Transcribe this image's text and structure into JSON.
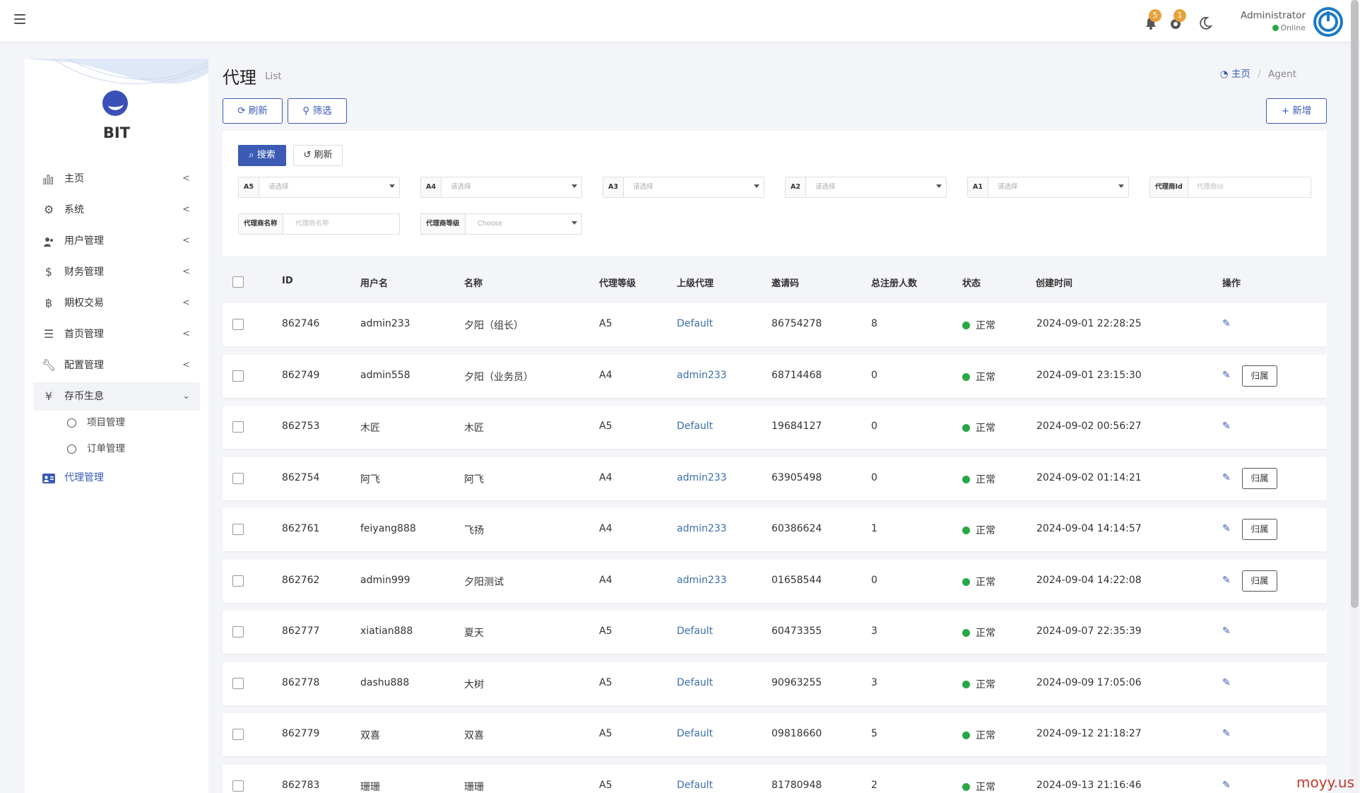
{
  "topbar": {
    "notif_count": "5",
    "msg_count": "1",
    "user_name": "Administrator",
    "user_status": "Online"
  },
  "sidebar": {
    "brand": "BIT",
    "items": [
      {
        "label": "主页",
        "icon": "bar-chart-icon"
      },
      {
        "label": "系统",
        "icon": "gear-icon"
      },
      {
        "label": "用户管理",
        "icon": "users-icon"
      },
      {
        "label": "财务管理",
        "icon": "dollar-icon"
      },
      {
        "label": "期权交易",
        "icon": "bitcoin-icon"
      },
      {
        "label": "首页管理",
        "icon": "list-icon"
      },
      {
        "label": "配置管理",
        "icon": "wrench-icon"
      },
      {
        "label": "存币生息",
        "icon": "yen-icon"
      }
    ],
    "sub_items": [
      "项目管理",
      "订单管理"
    ],
    "active_item": {
      "label": "代理管理",
      "icon": "id-card-icon"
    }
  },
  "page": {
    "title": "代理",
    "subtitle": "List",
    "breadcrumb_home": "主页",
    "breadcrumb_sep": "/",
    "breadcrumb_current": "Agent"
  },
  "toolbar": {
    "refresh": "刷新",
    "filter": "筛选",
    "add": "新增"
  },
  "filters": {
    "search_btn": "搜索",
    "reset_btn": "刷新",
    "fields": [
      {
        "label": "A5",
        "placeholder": "请选择"
      },
      {
        "label": "A4",
        "placeholder": "请选择"
      },
      {
        "label": "A3",
        "placeholder": "请选择"
      },
      {
        "label": "A2",
        "placeholder": "请选择"
      },
      {
        "label": "A1",
        "placeholder": "请选择"
      },
      {
        "label": "代理商Id",
        "placeholder": "代理商Id"
      },
      {
        "label": "代理商名称",
        "placeholder": "代理商名称"
      },
      {
        "label": "代理商等级",
        "placeholder": "Choose"
      }
    ]
  },
  "table": {
    "headers": [
      "ID",
      "用户名",
      "名称",
      "代理等级",
      "上级代理",
      "邀请码",
      "总注册人数",
      "状态",
      "创建时间",
      "操作"
    ],
    "action_label": "归属",
    "rows": [
      {
        "id": "862746",
        "username": "admin233",
        "name": "夕阳（组长）",
        "level": "A5",
        "parent": "Default",
        "code": "86754278",
        "count": "8",
        "status": "正常",
        "created": "2024-09-01 22:28:25",
        "has_assign": false
      },
      {
        "id": "862749",
        "username": "admin558",
        "name": "夕阳（业务员）",
        "level": "A4",
        "parent": "admin233",
        "code": "68714468",
        "count": "0",
        "status": "正常",
        "created": "2024-09-01 23:15:30",
        "has_assign": true
      },
      {
        "id": "862753",
        "username": "木匠",
        "name": "木匠",
        "level": "A5",
        "parent": "Default",
        "code": "19684127",
        "count": "0",
        "status": "正常",
        "created": "2024-09-02 00:56:27",
        "has_assign": false
      },
      {
        "id": "862754",
        "username": "阿飞",
        "name": "阿飞",
        "level": "A4",
        "parent": "admin233",
        "code": "63905498",
        "count": "0",
        "status": "正常",
        "created": "2024-09-02 01:14:21",
        "has_assign": true
      },
      {
        "id": "862761",
        "username": "feiyang888",
        "name": "飞扬",
        "level": "A4",
        "parent": "admin233",
        "code": "60386624",
        "count": "1",
        "status": "正常",
        "created": "2024-09-04 14:14:57",
        "has_assign": true
      },
      {
        "id": "862762",
        "username": "admin999",
        "name": "夕阳测试",
        "level": "A4",
        "parent": "admin233",
        "code": "01658544",
        "count": "0",
        "status": "正常",
        "created": "2024-09-04 14:22:08",
        "has_assign": true
      },
      {
        "id": "862777",
        "username": "xiatian888",
        "name": "夏天",
        "level": "A5",
        "parent": "Default",
        "code": "60473355",
        "count": "3",
        "status": "正常",
        "created": "2024-09-07 22:35:39",
        "has_assign": false
      },
      {
        "id": "862778",
        "username": "dashu888",
        "name": "大树",
        "level": "A5",
        "parent": "Default",
        "code": "90963255",
        "count": "3",
        "status": "正常",
        "created": "2024-09-09 17:05:06",
        "has_assign": false
      },
      {
        "id": "862779",
        "username": "双喜",
        "name": "双喜",
        "level": "A5",
        "parent": "Default",
        "code": "09818660",
        "count": "5",
        "status": "正常",
        "created": "2024-09-12 21:18:27",
        "has_assign": false
      },
      {
        "id": "862783",
        "username": "珊珊",
        "name": "珊珊",
        "level": "A5",
        "parent": "Default",
        "code": "81780948",
        "count": "2",
        "status": "正常",
        "created": "2024-09-13 21:16:46",
        "has_assign": false
      }
    ]
  },
  "watermark": "moyy.us",
  "colors": {
    "accent": "#3b5bb5",
    "status_ok": "#28a745",
    "badge": "#e6a23c"
  }
}
